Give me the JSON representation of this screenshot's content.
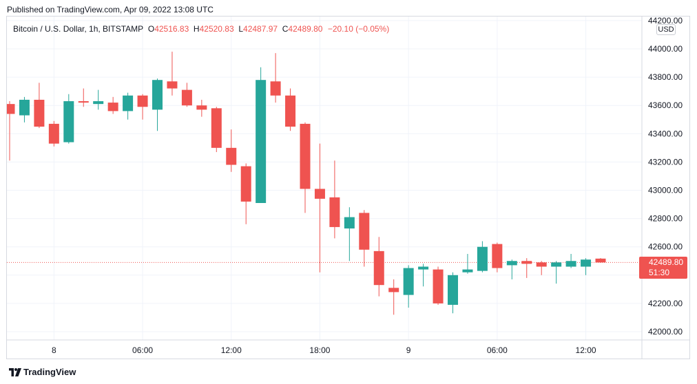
{
  "published_text": "Published on TradingView.com, Apr 09, 2022 13:08 UTC",
  "footer_brand": "TradingView",
  "legend": {
    "symbol": "Bitcoin / U.S. Dollar, 1h, BITSTAMP",
    "open_label": "O",
    "open": "42516.83",
    "high_label": "H",
    "high": "42520.83",
    "low_label": "L",
    "low": "42487.97",
    "close_label": "C",
    "close": "42489.80",
    "change": "−20.10 (−0.05%)"
  },
  "currency_badge": "USD",
  "last_price_tag": {
    "price": "42489.80",
    "countdown": "51:30"
  },
  "colors": {
    "up": "#26a69a",
    "down": "#ef5350",
    "grid": "#f0f3fa",
    "text": "#131722"
  },
  "chart_data": {
    "type": "candlestick",
    "title": "Bitcoin / U.S. Dollar, 1h, BITSTAMP",
    "ylim": [
      41950,
      44250
    ],
    "y_ticks": [
      42000,
      42200,
      42400,
      42600,
      42800,
      43000,
      43200,
      43400,
      43600,
      43800,
      44000,
      44200
    ],
    "y_tick_labels": [
      "42000.00",
      "42200.00",
      "42400.00",
      "42600.00",
      "42800.00",
      "43000.00",
      "43200.00",
      "43400.00",
      "43600.00",
      "43800.00",
      "44000.00",
      "44200.00"
    ],
    "x_ticks": [
      {
        "index": 3,
        "label": "8"
      },
      {
        "index": 9,
        "label": "06:00"
      },
      {
        "index": 15,
        "label": "12:00"
      },
      {
        "index": 21,
        "label": "18:00"
      },
      {
        "index": 27,
        "label": "9"
      },
      {
        "index": 33,
        "label": "06:00"
      },
      {
        "index": 39,
        "label": "12:00"
      }
    ],
    "last_price": 42489.8,
    "grid": true,
    "candles": [
      {
        "o": 43610,
        "h": 43630,
        "l": 43210,
        "c": 43540
      },
      {
        "o": 43530,
        "h": 43660,
        "l": 43480,
        "c": 43640
      },
      {
        "o": 43640,
        "h": 43760,
        "l": 43440,
        "c": 43450
      },
      {
        "o": 43470,
        "h": 43490,
        "l": 43310,
        "c": 43330
      },
      {
        "o": 43340,
        "h": 43680,
        "l": 43330,
        "c": 43630
      },
      {
        "o": 43630,
        "h": 43720,
        "l": 43590,
        "c": 43620
      },
      {
        "o": 43610,
        "h": 43710,
        "l": 43570,
        "c": 43630
      },
      {
        "o": 43620,
        "h": 43660,
        "l": 43540,
        "c": 43560
      },
      {
        "o": 43560,
        "h": 43690,
        "l": 43500,
        "c": 43670
      },
      {
        "o": 43670,
        "h": 43680,
        "l": 43500,
        "c": 43590
      },
      {
        "o": 43570,
        "h": 43790,
        "l": 43420,
        "c": 43780
      },
      {
        "o": 43770,
        "h": 43980,
        "l": 43670,
        "c": 43720
      },
      {
        "o": 43710,
        "h": 43760,
        "l": 43590,
        "c": 43600
      },
      {
        "o": 43600,
        "h": 43640,
        "l": 43520,
        "c": 43570
      },
      {
        "o": 43580,
        "h": 43590,
        "l": 43270,
        "c": 43300
      },
      {
        "o": 43300,
        "h": 43430,
        "l": 43130,
        "c": 43180
      },
      {
        "o": 43170,
        "h": 43190,
        "l": 42760,
        "c": 42920
      },
      {
        "o": 42910,
        "h": 43870,
        "l": 42910,
        "c": 43780
      },
      {
        "o": 43770,
        "h": 43970,
        "l": 43620,
        "c": 43670
      },
      {
        "o": 43670,
        "h": 43720,
        "l": 43420,
        "c": 43450
      },
      {
        "o": 43470,
        "h": 43480,
        "l": 42840,
        "c": 43010
      },
      {
        "o": 43010,
        "h": 43330,
        "l": 42420,
        "c": 42940
      },
      {
        "o": 42950,
        "h": 43210,
        "l": 42660,
        "c": 42740
      },
      {
        "o": 42730,
        "h": 42880,
        "l": 42500,
        "c": 42810
      },
      {
        "o": 42840,
        "h": 42860,
        "l": 42460,
        "c": 42580
      },
      {
        "o": 42570,
        "h": 42670,
        "l": 42250,
        "c": 42330
      },
      {
        "o": 42310,
        "h": 42370,
        "l": 42120,
        "c": 42280
      },
      {
        "o": 42260,
        "h": 42470,
        "l": 42170,
        "c": 42450
      },
      {
        "o": 42440,
        "h": 42480,
        "l": 42320,
        "c": 42460
      },
      {
        "o": 42440,
        "h": 42460,
        "l": 42190,
        "c": 42200
      },
      {
        "o": 42190,
        "h": 42420,
        "l": 42130,
        "c": 42400
      },
      {
        "o": 42420,
        "h": 42550,
        "l": 42410,
        "c": 42440
      },
      {
        "o": 42430,
        "h": 42640,
        "l": 42420,
        "c": 42600
      },
      {
        "o": 42620,
        "h": 42630,
        "l": 42420,
        "c": 42450
      },
      {
        "o": 42470,
        "h": 42510,
        "l": 42370,
        "c": 42500
      },
      {
        "o": 42500,
        "h": 42520,
        "l": 42380,
        "c": 42480
      },
      {
        "o": 42490,
        "h": 42500,
        "l": 42400,
        "c": 42460
      },
      {
        "o": 42460,
        "h": 42500,
        "l": 42340,
        "c": 42490
      },
      {
        "o": 42460,
        "h": 42550,
        "l": 42450,
        "c": 42500
      },
      {
        "o": 42460,
        "h": 42520,
        "l": 42400,
        "c": 42510
      },
      {
        "o": 42516.83,
        "h": 42520.83,
        "l": 42487.97,
        "c": 42489.8
      }
    ]
  }
}
